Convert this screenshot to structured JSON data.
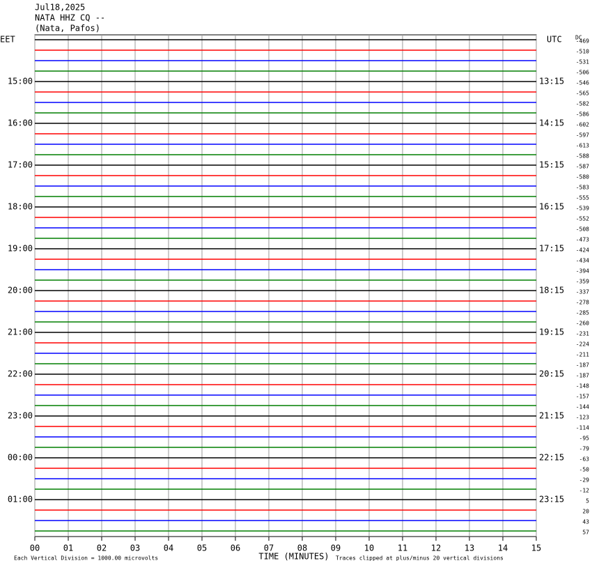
{
  "chart_data": {
    "type": "helicorder",
    "title": [
      "Jul18,2025",
      "NATA HHZ CQ --",
      "(Nata, Pafos)"
    ],
    "left_zone": "EET",
    "right_zone": "UTC",
    "dc_header": "DC",
    "eet_labels": [
      "15:00",
      "16:00",
      "17:00",
      "18:00",
      "19:00",
      "20:00",
      "21:00",
      "22:00",
      "23:00",
      "00:00",
      "01:00"
    ],
    "utc_labels": [
      "13:15",
      "14:15",
      "15:15",
      "16:15",
      "17:15",
      "18:15",
      "19:15",
      "20:15",
      "21:15",
      "22:15",
      "23:15"
    ],
    "dc_offsets": [
      -469,
      -510,
      -531,
      -506,
      -546,
      -565,
      -582,
      -586,
      -602,
      -597,
      -613,
      -588,
      -587,
      -580,
      -583,
      -555,
      -539,
      -552,
      -508,
      -473,
      -424,
      -434,
      -394,
      -359,
      -337,
      -278,
      -285,
      -260,
      -231,
      -224,
      -211,
      -187,
      -187,
      -148,
      -157,
      -144,
      -123,
      -114,
      -95,
      -79,
      -63,
      -50,
      -29,
      -12,
      5,
      20,
      43,
      57
    ],
    "trace_colors": [
      "#000000",
      "#ff0000",
      "#0000ff",
      "#007f00"
    ],
    "xlim": [
      0,
      15
    ],
    "xticks": [
      {
        "value": 0,
        "label": "00"
      },
      {
        "value": 1,
        "label": "01"
      },
      {
        "value": 2,
        "label": "02"
      },
      {
        "value": 3,
        "label": "03"
      },
      {
        "value": 4,
        "label": "04"
      },
      {
        "value": 5,
        "label": "05"
      },
      {
        "value": 6,
        "label": "06"
      },
      {
        "value": 7,
        "label": "07"
      },
      {
        "value": 8,
        "label": "08"
      },
      {
        "value": 9,
        "label": "09"
      },
      10,
      11,
      12,
      13,
      14,
      15
    ],
    "xlabel": "TIME (MINUTES)",
    "scale_note": "Each Vertical Division = 1000.00 microvolts",
    "clip_note": "Traces clipped at plus/minus 20 vertical divisions"
  }
}
